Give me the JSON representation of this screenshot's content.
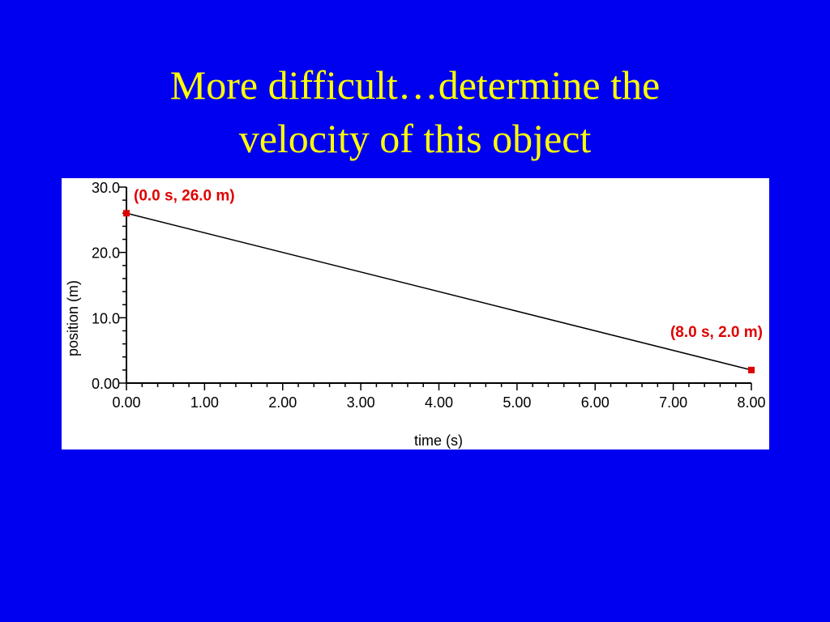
{
  "slide": {
    "background_color": "#0000f0",
    "title_color": "#ffff00",
    "title_lines": [
      "More difficult…determine the",
      "velocity of this object"
    ]
  },
  "chart_data": {
    "type": "line",
    "title": "",
    "xlabel": "time (s)",
    "ylabel": "position (m)",
    "xlim": [
      0,
      8
    ],
    "ylim": [
      0,
      30
    ],
    "x_ticks": [
      "0.00",
      "1.00",
      "2.00",
      "3.00",
      "4.00",
      "5.00",
      "6.00",
      "7.00",
      "8.00"
    ],
    "y_ticks": [
      "0.00",
      "10.0",
      "20.0",
      "30.0"
    ],
    "grid": false,
    "series": [
      {
        "x": [
          0.0,
          8.0
        ],
        "y": [
          26.0,
          2.0
        ],
        "color": "#000000"
      }
    ],
    "points": [
      {
        "x": 0.0,
        "y": 26.0,
        "label": "(0.0 s, 26.0 m)",
        "color": "#e00000"
      },
      {
        "x": 8.0,
        "y": 2.0,
        "label": "(8.0 s, 2.0 m)",
        "color": "#e00000"
      }
    ]
  }
}
